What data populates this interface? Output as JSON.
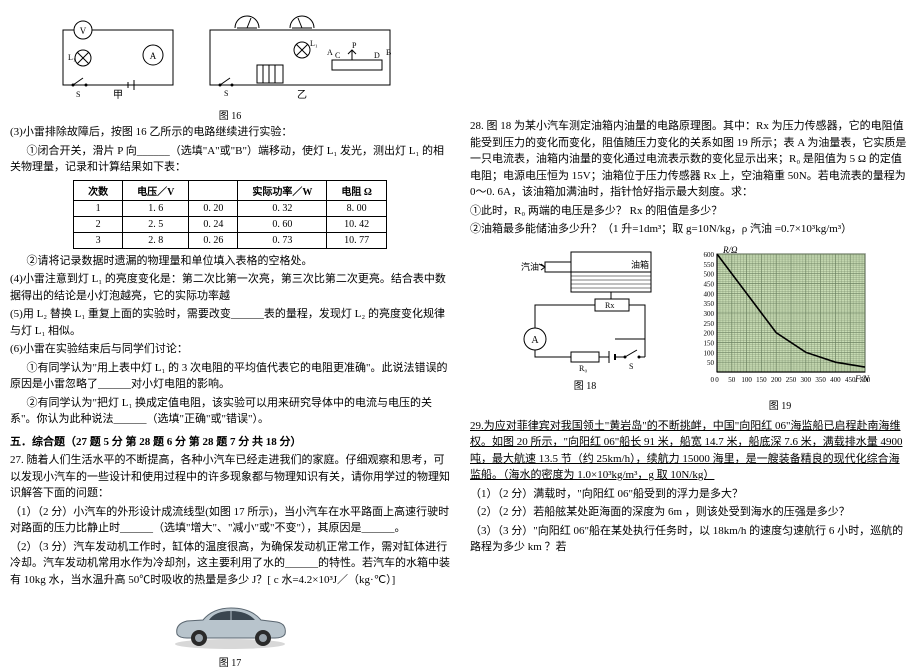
{
  "left": {
    "fig16_caption": "图 16",
    "para3": "(3)小雷排除故障后，按图 16 乙所示的电路继续进行实验：",
    "para3a": "①闭合开关，滑片 P 向______（选填\"A\"或\"B\"）端移动，使灯 L₁ 发光，测出灯 L₁ 的相关物理量，记录和计算结果如下表：",
    "table": {
      "headers": [
        "次数",
        "电压／V",
        "",
        "实际功率／W",
        "电阻 Ω"
      ],
      "rows": [
        [
          "1",
          "1. 6",
          "0. 20",
          "0. 32",
          "8. 00"
        ],
        [
          "2",
          "2. 5",
          "0. 24",
          "0. 60",
          "10. 42"
        ],
        [
          "3",
          "2. 8",
          "0. 26",
          "0. 73",
          "10. 77"
        ]
      ]
    },
    "para3b": "②请将记录数据时遗漏的物理量和单位填入表格的空格处。",
    "para4": "(4)小雷注意到灯 L₁ 的亮度变化是：第二次比第一次亮，第三次比第二次更亮。结合表中数  据得出的结论是小灯泡越亮，它的实际功率越",
    "para5": "(5)用 L₂ 替换 L₁ 重复上面的实验时，需要改变______表的量程，发现灯 L₂ 的亮度变化规律与灯 L₁ 相似。",
    "para6": "(6)小雷在实验结束后与同学们讨论：",
    "para6a": "①有同学认为\"用上表中灯 L₁ 的 3 次电阻的平均值代表它的电阻更准确\"。此说法错误的原因是小雷忽略了______对小灯电阻的影响。",
    "para6b": "②有同学认为\"把灯 L₁ 换成定值电阻，该实验可以用来研究导体中的电流与电压的关系\"。你认为此种说法______（选填\"正确\"或\"错误\"）。",
    "sec5_title": "五．综合题（27 题 5 分  第 28 题 6 分  第 28 题 7 分 共 18 分）",
    "q27": "27. 随着人们生活水平的不断提高，各种小汽车已经走进我们的家庭。仔细观察和思考，可以发现小汽车的一些设计和使用过程中的许多现象都与物理知识有关，请你用学过的物理知识解答下面的问题：",
    "q27_1": "（1）（2 分）小汽车的外形设计成流线型(如图 17 所示)，当小汽车在水平路面上高速行驶时对路面的压力比静止时______（选填\"增大\"、\"减小\"或\"不变\"），其原因是______。",
    "q27_2": "（2）（3 分）汽车发动机工作时，缸体的温度很高，为确保发动机正常工作，需对缸体进行冷却。汽车发动机常用水作为冷却剂，这主要利用了水的______的特性。若汽车的水箱中装有 10kg 水，当水温升高 50℃时吸收的热量是多少 J？[ c 水=4.2×10³J／（kg·℃）]",
    "fig17_caption": "图 17"
  },
  "right": {
    "q28": "28. 图 18 为某小汽车测定油箱内油量的电路原理图。其中：Rx 为压力传感器，它的电阻值能受到压力的变化而变化，阻值随压力变化的关系如图 19 所示；表 A 为油量表，它实质是一只电流表，油箱内油量的变化通过电流表示数的变化显示出来；R₀ 是阻值为 5 Ω 的定值电阻；电源电压恒为 15V；油箱位于压力传感器 Rx 上，空油箱重 50N。若电流表的量程为 0～0. 6A，该油箱加满油时，指针恰好指示最大刻度。求：",
    "q28_1": "①此时，R₀ 两端的电压是多少？  Rx 的阻值是多少？",
    "q28_2": "②油箱最多能储油多少升？（1 升=1dm³；取 g=10N/kg，ρ 汽油  =0.7×10³kg/m³）",
    "fig18_caption": "图 18",
    "fig19_caption": "图 19",
    "chart19": {
      "y_label": "R/Ω",
      "x_label": "F/N",
      "y_ticks": [
        0,
        50,
        100,
        150,
        200,
        250,
        300,
        350,
        400,
        450,
        500,
        550,
        600
      ],
      "x_ticks": [
        0,
        50,
        100,
        150,
        200,
        250,
        300,
        350,
        400,
        450,
        500
      ],
      "bg_color": "#c8dcb4",
      "grid_color": "#6b8060",
      "line_color": "#000000",
      "line_points": [
        [
          0,
          600
        ],
        [
          100,
          400
        ],
        [
          200,
          200
        ],
        [
          300,
          100
        ],
        [
          400,
          50
        ],
        [
          500,
          25
        ]
      ]
    },
    "q29": "29.为应对菲律宾对我国领土\"黄岩岛\"的不断挑衅，中国\"向阳红 06\"海监船已启程赴南海维权。如图 20 所示，\"向阳红 06\"船长 91 米，船宽 14.7 米，船底深 7.6 米，满载排水量 4900 吨，最大航速 13.5 节（约 25km/h），续航力 15000 海里，是一艘装备精良的现代化综合海监船。（海水的密度为 1.0×10³kg/m³，g 取 10N/kg）",
    "q29_1": "（1）（2 分）满载时，\"向阳红 06\"船受到的浮力是多大？",
    "q29_2": "（2）（2 分）若船舷某处距海面的深度为 6m ，则该处受到海水的压强是多少？",
    "q29_3": "（3）（3 分）\"向阳红 06\"船在某处执行任务时，以 18km/h 的速度匀速航行 6 小时，巡航的路程为多少 km ？若"
  },
  "circuit_labels": {
    "jia": "甲",
    "yi": "乙"
  }
}
